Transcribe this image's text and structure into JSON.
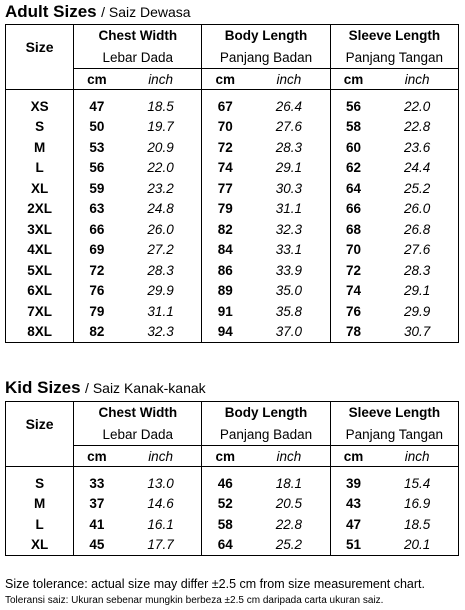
{
  "adult": {
    "title": "Adult Sizes",
    "subtitle": "/ Saiz Dewasa",
    "size_header": "Size",
    "groups": [
      {
        "name": "Chest Width",
        "local": "Lebar Dada"
      },
      {
        "name": "Body Length",
        "local": "Panjang Badan"
      },
      {
        "name": "Sleeve Length",
        "local": "Panjang Tangan"
      }
    ],
    "units": {
      "cm": "cm",
      "inch": "inch"
    },
    "rows": [
      {
        "size": "XS",
        "chest_cm": "47",
        "chest_in": "18.5",
        "body_cm": "67",
        "body_in": "26.4",
        "sleeve_cm": "56",
        "sleeve_in": "22.0"
      },
      {
        "size": "S",
        "chest_cm": "50",
        "chest_in": "19.7",
        "body_cm": "70",
        "body_in": "27.6",
        "sleeve_cm": "58",
        "sleeve_in": "22.8"
      },
      {
        "size": "M",
        "chest_cm": "53",
        "chest_in": "20.9",
        "body_cm": "72",
        "body_in": "28.3",
        "sleeve_cm": "60",
        "sleeve_in": "23.6"
      },
      {
        "size": "L",
        "chest_cm": "56",
        "chest_in": "22.0",
        "body_cm": "74",
        "body_in": "29.1",
        "sleeve_cm": "62",
        "sleeve_in": "24.4"
      },
      {
        "size": "XL",
        "chest_cm": "59",
        "chest_in": "23.2",
        "body_cm": "77",
        "body_in": "30.3",
        "sleeve_cm": "64",
        "sleeve_in": "25.2"
      },
      {
        "size": "2XL",
        "chest_cm": "63",
        "chest_in": "24.8",
        "body_cm": "79",
        "body_in": "31.1",
        "sleeve_cm": "66",
        "sleeve_in": "26.0"
      },
      {
        "size": "3XL",
        "chest_cm": "66",
        "chest_in": "26.0",
        "body_cm": "82",
        "body_in": "32.3",
        "sleeve_cm": "68",
        "sleeve_in": "26.8"
      },
      {
        "size": "4XL",
        "chest_cm": "69",
        "chest_in": "27.2",
        "body_cm": "84",
        "body_in": "33.1",
        "sleeve_cm": "70",
        "sleeve_in": "27.6"
      },
      {
        "size": "5XL",
        "chest_cm": "72",
        "chest_in": "28.3",
        "body_cm": "86",
        "body_in": "33.9",
        "sleeve_cm": "72",
        "sleeve_in": "28.3"
      },
      {
        "size": "6XL",
        "chest_cm": "76",
        "chest_in": "29.9",
        "body_cm": "89",
        "body_in": "35.0",
        "sleeve_cm": "74",
        "sleeve_in": "29.1"
      },
      {
        "size": "7XL",
        "chest_cm": "79",
        "chest_in": "31.1",
        "body_cm": "91",
        "body_in": "35.8",
        "sleeve_cm": "76",
        "sleeve_in": "29.9"
      },
      {
        "size": "8XL",
        "chest_cm": "82",
        "chest_in": "32.3",
        "body_cm": "94",
        "body_in": "37.0",
        "sleeve_cm": "78",
        "sleeve_in": "30.7"
      }
    ]
  },
  "kid": {
    "title": "Kid Sizes",
    "subtitle": "/ Saiz Kanak-kanak",
    "size_header": "Size",
    "groups": [
      {
        "name": "Chest Width",
        "local": "Lebar Dada"
      },
      {
        "name": "Body Length",
        "local": "Panjang Badan"
      },
      {
        "name": "Sleeve Length",
        "local": "Panjang Tangan"
      }
    ],
    "units": {
      "cm": "cm",
      "inch": "inch"
    },
    "rows": [
      {
        "size": "S",
        "chest_cm": "33",
        "chest_in": "13.0",
        "body_cm": "46",
        "body_in": "18.1",
        "sleeve_cm": "39",
        "sleeve_in": "15.4"
      },
      {
        "size": "M",
        "chest_cm": "37",
        "chest_in": "14.6",
        "body_cm": "52",
        "body_in": "20.5",
        "sleeve_cm": "43",
        "sleeve_in": "16.9"
      },
      {
        "size": "L",
        "chest_cm": "41",
        "chest_in": "16.1",
        "body_cm": "58",
        "body_in": "22.8",
        "sleeve_cm": "47",
        "sleeve_in": "18.5"
      },
      {
        "size": "XL",
        "chest_cm": "45",
        "chest_in": "17.7",
        "body_cm": "64",
        "body_in": "25.2",
        "sleeve_cm": "51",
        "sleeve_in": "20.1"
      }
    ]
  },
  "notes": {
    "english": "Size tolerance: actual size may differ ±2.5 cm from size measurement chart.",
    "malay": "Toleransi saiz: Ukuran sebenar mungkin berbeza ±2.5 cm daripada carta ukuran saiz."
  }
}
